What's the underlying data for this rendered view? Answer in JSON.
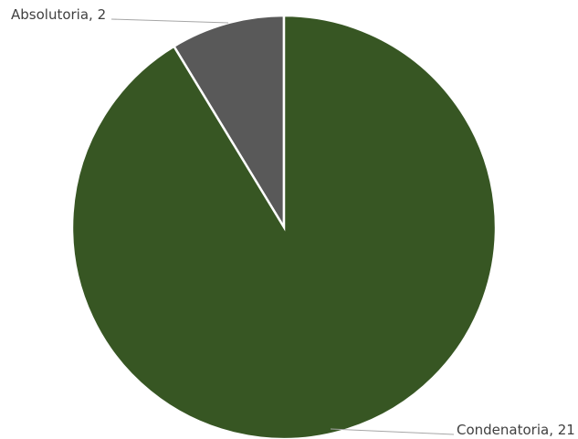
{
  "chart_data": {
    "type": "pie",
    "slices": [
      {
        "label": "Absolutoria",
        "value": 2,
        "color": "#595959",
        "data_label": "Absolutoria, 2"
      },
      {
        "label": "Condenatoria",
        "value": 21,
        "color": "#375623",
        "data_label": "Condenatoria, 21"
      }
    ],
    "start": "12 o'clock, counter-clockwise",
    "legend": "none",
    "data_labels": "outside with leader lines"
  }
}
